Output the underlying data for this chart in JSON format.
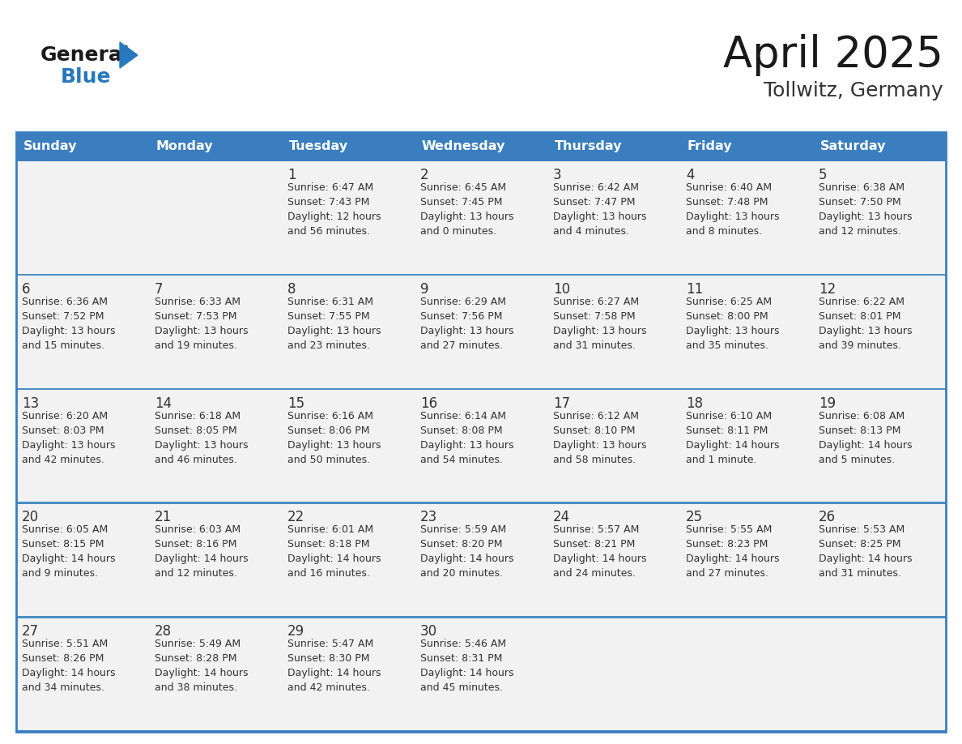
{
  "title": "April 2025",
  "subtitle": "Tollwitz, Germany",
  "header_bg": "#3a7ebf",
  "header_text_color": "#FFFFFF",
  "cell_bg": "#f2f2f2",
  "cell_bg_empty": "#f8f8f8",
  "border_color": "#3a7ebf",
  "row_border_color": "#4a90c4",
  "text_color": "#333333",
  "day_num_color": "#333333",
  "logo_text_color": "#1a1a1a",
  "logo_blue_color": "#2878BE",
  "triangle_color": "#2878BE",
  "title_color": "#1a1a1a",
  "subtitle_color": "#333333",
  "days_of_week": [
    "Sunday",
    "Monday",
    "Tuesday",
    "Wednesday",
    "Thursday",
    "Friday",
    "Saturday"
  ],
  "weeks": [
    [
      {
        "day": "",
        "info": ""
      },
      {
        "day": "",
        "info": ""
      },
      {
        "day": "1",
        "info": "Sunrise: 6:47 AM\nSunset: 7:43 PM\nDaylight: 12 hours\nand 56 minutes."
      },
      {
        "day": "2",
        "info": "Sunrise: 6:45 AM\nSunset: 7:45 PM\nDaylight: 13 hours\nand 0 minutes."
      },
      {
        "day": "3",
        "info": "Sunrise: 6:42 AM\nSunset: 7:47 PM\nDaylight: 13 hours\nand 4 minutes."
      },
      {
        "day": "4",
        "info": "Sunrise: 6:40 AM\nSunset: 7:48 PM\nDaylight: 13 hours\nand 8 minutes."
      },
      {
        "day": "5",
        "info": "Sunrise: 6:38 AM\nSunset: 7:50 PM\nDaylight: 13 hours\nand 12 minutes."
      }
    ],
    [
      {
        "day": "6",
        "info": "Sunrise: 6:36 AM\nSunset: 7:52 PM\nDaylight: 13 hours\nand 15 minutes."
      },
      {
        "day": "7",
        "info": "Sunrise: 6:33 AM\nSunset: 7:53 PM\nDaylight: 13 hours\nand 19 minutes."
      },
      {
        "day": "8",
        "info": "Sunrise: 6:31 AM\nSunset: 7:55 PM\nDaylight: 13 hours\nand 23 minutes."
      },
      {
        "day": "9",
        "info": "Sunrise: 6:29 AM\nSunset: 7:56 PM\nDaylight: 13 hours\nand 27 minutes."
      },
      {
        "day": "10",
        "info": "Sunrise: 6:27 AM\nSunset: 7:58 PM\nDaylight: 13 hours\nand 31 minutes."
      },
      {
        "day": "11",
        "info": "Sunrise: 6:25 AM\nSunset: 8:00 PM\nDaylight: 13 hours\nand 35 minutes."
      },
      {
        "day": "12",
        "info": "Sunrise: 6:22 AM\nSunset: 8:01 PM\nDaylight: 13 hours\nand 39 minutes."
      }
    ],
    [
      {
        "day": "13",
        "info": "Sunrise: 6:20 AM\nSunset: 8:03 PM\nDaylight: 13 hours\nand 42 minutes."
      },
      {
        "day": "14",
        "info": "Sunrise: 6:18 AM\nSunset: 8:05 PM\nDaylight: 13 hours\nand 46 minutes."
      },
      {
        "day": "15",
        "info": "Sunrise: 6:16 AM\nSunset: 8:06 PM\nDaylight: 13 hours\nand 50 minutes."
      },
      {
        "day": "16",
        "info": "Sunrise: 6:14 AM\nSunset: 8:08 PM\nDaylight: 13 hours\nand 54 minutes."
      },
      {
        "day": "17",
        "info": "Sunrise: 6:12 AM\nSunset: 8:10 PM\nDaylight: 13 hours\nand 58 minutes."
      },
      {
        "day": "18",
        "info": "Sunrise: 6:10 AM\nSunset: 8:11 PM\nDaylight: 14 hours\nand 1 minute."
      },
      {
        "day": "19",
        "info": "Sunrise: 6:08 AM\nSunset: 8:13 PM\nDaylight: 14 hours\nand 5 minutes."
      }
    ],
    [
      {
        "day": "20",
        "info": "Sunrise: 6:05 AM\nSunset: 8:15 PM\nDaylight: 14 hours\nand 9 minutes."
      },
      {
        "day": "21",
        "info": "Sunrise: 6:03 AM\nSunset: 8:16 PM\nDaylight: 14 hours\nand 12 minutes."
      },
      {
        "day": "22",
        "info": "Sunrise: 6:01 AM\nSunset: 8:18 PM\nDaylight: 14 hours\nand 16 minutes."
      },
      {
        "day": "23",
        "info": "Sunrise: 5:59 AM\nSunset: 8:20 PM\nDaylight: 14 hours\nand 20 minutes."
      },
      {
        "day": "24",
        "info": "Sunrise: 5:57 AM\nSunset: 8:21 PM\nDaylight: 14 hours\nand 24 minutes."
      },
      {
        "day": "25",
        "info": "Sunrise: 5:55 AM\nSunset: 8:23 PM\nDaylight: 14 hours\nand 27 minutes."
      },
      {
        "day": "26",
        "info": "Sunrise: 5:53 AM\nSunset: 8:25 PM\nDaylight: 14 hours\nand 31 minutes."
      }
    ],
    [
      {
        "day": "27",
        "info": "Sunrise: 5:51 AM\nSunset: 8:26 PM\nDaylight: 14 hours\nand 34 minutes."
      },
      {
        "day": "28",
        "info": "Sunrise: 5:49 AM\nSunset: 8:28 PM\nDaylight: 14 hours\nand 38 minutes."
      },
      {
        "day": "29",
        "info": "Sunrise: 5:47 AM\nSunset: 8:30 PM\nDaylight: 14 hours\nand 42 minutes."
      },
      {
        "day": "30",
        "info": "Sunrise: 5:46 AM\nSunset: 8:31 PM\nDaylight: 14 hours\nand 45 minutes."
      },
      {
        "day": "",
        "info": ""
      },
      {
        "day": "",
        "info": ""
      },
      {
        "day": "",
        "info": ""
      }
    ]
  ]
}
